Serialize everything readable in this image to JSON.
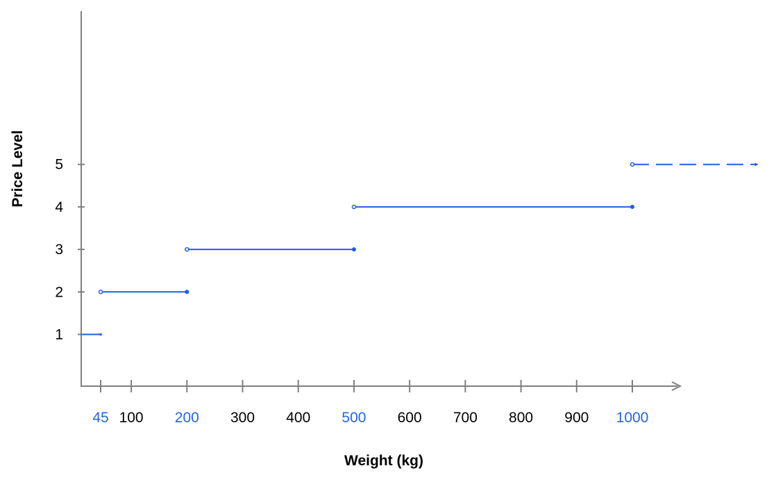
{
  "chart_data": {
    "type": "line",
    "xlabel": "Weight (kg)",
    "ylabel": "Price Level",
    "xlim": [
      10,
      1080
    ],
    "ylim": [
      -0.25,
      8
    ],
    "x_ticks": [
      {
        "value": 45,
        "label": "45",
        "highlight": true
      },
      {
        "value": 100,
        "label": "100",
        "highlight": false
      },
      {
        "value": 200,
        "label": "200",
        "highlight": true
      },
      {
        "value": 300,
        "label": "300",
        "highlight": false
      },
      {
        "value": 400,
        "label": "400",
        "highlight": false
      },
      {
        "value": 500,
        "label": "500",
        "highlight": true
      },
      {
        "value": 600,
        "label": "600",
        "highlight": false
      },
      {
        "value": 700,
        "label": "700",
        "highlight": false
      },
      {
        "value": 800,
        "label": "800",
        "highlight": false
      },
      {
        "value": 900,
        "label": "900",
        "highlight": false
      },
      {
        "value": 1000,
        "label": "1000",
        "highlight": true
      }
    ],
    "y_ticks": [
      {
        "value": 1,
        "label": "1"
      },
      {
        "value": 2,
        "label": "2"
      },
      {
        "value": 3,
        "label": "3"
      },
      {
        "value": 4,
        "label": "4"
      },
      {
        "value": 5,
        "label": "5"
      }
    ],
    "segments": [
      {
        "level": 1,
        "x_start": 10,
        "x_end": 45,
        "start_closed": true,
        "end_closed": true,
        "dashed": false
      },
      {
        "level": 2,
        "x_start": 45,
        "x_end": 200,
        "start_closed": false,
        "end_closed": true,
        "dashed": false
      },
      {
        "level": 3,
        "x_start": 200,
        "x_end": 500,
        "start_closed": false,
        "end_closed": true,
        "dashed": false
      },
      {
        "level": 4,
        "x_start": 500,
        "x_end": 1000,
        "start_closed": false,
        "end_closed": true,
        "dashed": false
      },
      {
        "level": 5,
        "x_start": 1000,
        "x_end": 1225,
        "start_closed": false,
        "end_closed": false,
        "dashed": true
      }
    ],
    "grid": false,
    "colors": {
      "series": "#1f5fe0",
      "axis": "#7f7f7f",
      "highlight_label": "#2563eb",
      "label": "#000000"
    }
  }
}
